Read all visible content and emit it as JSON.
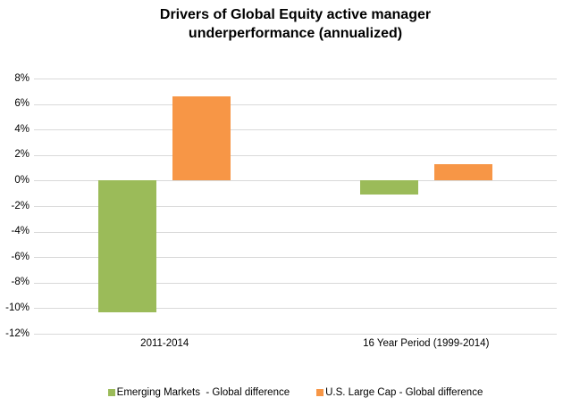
{
  "title": "Drivers of Global Equity active manager underperformance (annualized)",
  "colors": {
    "emerging_markets_green": "#9BBB59",
    "us_large_cap_orange": "#F79646",
    "gridline_gray": "#D9D9D9",
    "text": "#000000",
    "background": "#FFFFFF"
  },
  "chart_data": {
    "type": "bar",
    "title": "Drivers of Global Equity active manager underperformance (annualized)",
    "categories": [
      "2011-2014",
      "16 Year Period (1999-2014)"
    ],
    "series": [
      {
        "name": "Emerging Markets  - Global difference",
        "color": "#9BBB59",
        "values": [
          -10.3,
          -1.1
        ]
      },
      {
        "name": "U.S. Large Cap - Global difference",
        "color": "#F79646",
        "values": [
          6.6,
          1.3
        ]
      }
    ],
    "xlabel": "",
    "ylabel": "",
    "ylim": [
      -12,
      8
    ],
    "ytick_step": 2,
    "ytick_labels": [
      "8%",
      "6%",
      "4%",
      "2%",
      "0%",
      "-2%",
      "-4%",
      "-6%",
      "-8%",
      "-10%",
      "-12%"
    ],
    "grid": true,
    "legend_position": "bottom"
  }
}
